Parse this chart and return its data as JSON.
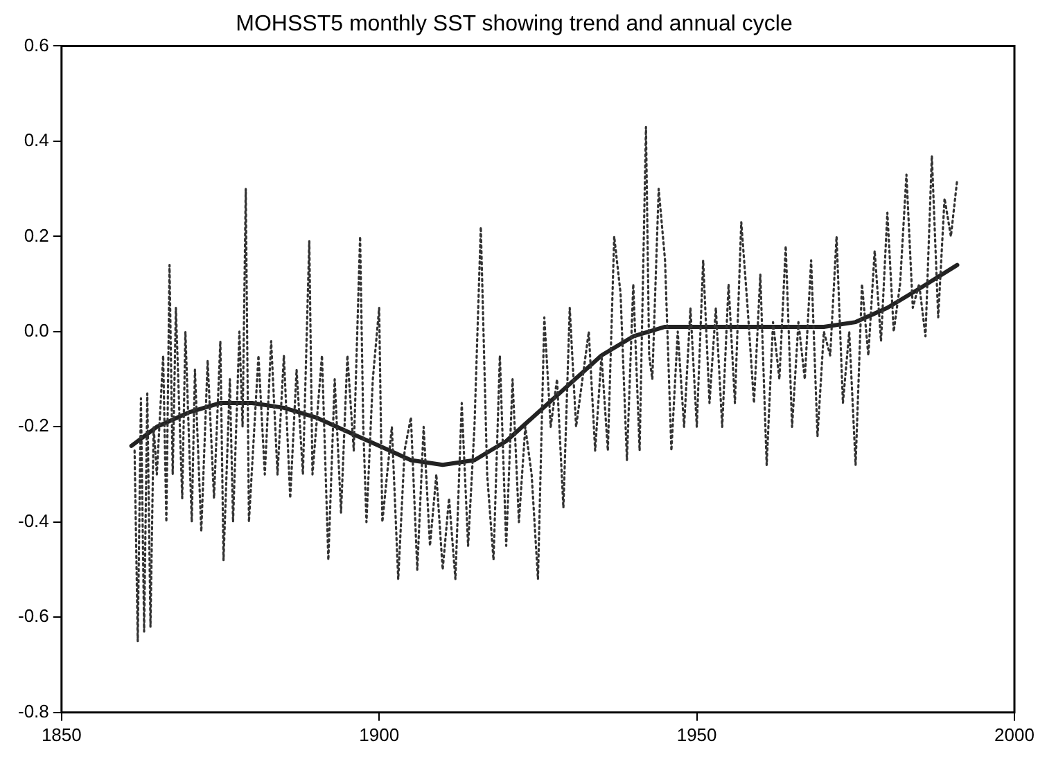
{
  "chart_data": {
    "type": "line",
    "title": "MOHSST5 monthly SST showing trend and annual cycle",
    "xlim": [
      1850,
      2000
    ],
    "xticks": [
      1850,
      1900,
      1950,
      2000
    ],
    "ylim": [
      -0.8,
      0.6
    ],
    "yticks": [
      {
        "value": -0.8,
        "label": "-0.8"
      },
      -0.6,
      -0.4,
      -0.2,
      {
        "value": 0,
        "label": "0.0"
      },
      0.2,
      0.4,
      0.6
    ],
    "grid": false,
    "legend": false,
    "marker": "none",
    "series": [
      {
        "color": "#333333",
        "line_style": "dotted",
        "x": [
          1861.5,
          1862,
          1862.5,
          1863,
          1863.5,
          1864,
          1864.5,
          1865,
          1866,
          1866.5,
          1867,
          1867.5,
          1868,
          1869,
          1869.5,
          1870.5,
          1871,
          1872,
          1873,
          1874,
          1875,
          1875.5,
          1876.5,
          1877,
          1878,
          1878.5,
          1879,
          1879.5,
          1881,
          1882,
          1883,
          1884,
          1885,
          1886,
          1887,
          1888,
          1889,
          1889.5,
          1891,
          1892,
          1893,
          1894,
          1895,
          1896,
          1897,
          1897.5,
          1898,
          1899,
          1900,
          1900.5,
          1902,
          1903,
          1904,
          1905,
          1906,
          1907,
          1908,
          1909,
          1910,
          1911,
          1912,
          1913,
          1914,
          1915,
          1916,
          1917,
          1918,
          1919,
          1920,
          1921,
          1922,
          1923,
          1924,
          1925,
          1926,
          1927,
          1928,
          1929,
          1930,
          1931,
          1932,
          1933,
          1934,
          1935,
          1936,
          1937,
          1938,
          1939,
          1940,
          1941,
          1942,
          1942.5,
          1943,
          1944,
          1945,
          1946,
          1947,
          1948,
          1949,
          1950,
          1951,
          1952,
          1953,
          1954,
          1955,
          1956,
          1957,
          1958,
          1959,
          1960,
          1961,
          1962,
          1963,
          1964,
          1965,
          1966,
          1967,
          1968,
          1969,
          1970,
          1971,
          1972,
          1973,
          1974,
          1975,
          1976,
          1977,
          1978,
          1979,
          1980,
          1981,
          1982,
          1983,
          1984,
          1985,
          1986,
          1987,
          1988,
          1989,
          1990,
          1991
        ],
        "values": [
          -0.25,
          -0.65,
          -0.14,
          -0.63,
          -0.13,
          -0.62,
          -0.2,
          -0.3,
          -0.05,
          -0.4,
          0.14,
          -0.3,
          0.05,
          -0.35,
          0.0,
          -0.4,
          -0.08,
          -0.42,
          -0.06,
          -0.35,
          -0.02,
          -0.48,
          -0.1,
          -0.4,
          0.0,
          -0.2,
          0.3,
          -0.4,
          -0.05,
          -0.3,
          -0.02,
          -0.3,
          -0.05,
          -0.35,
          -0.08,
          -0.3,
          0.19,
          -0.3,
          -0.05,
          -0.48,
          -0.1,
          -0.38,
          -0.05,
          -0.25,
          0.2,
          -0.2,
          -0.4,
          -0.1,
          0.05,
          -0.4,
          -0.2,
          -0.52,
          -0.25,
          -0.18,
          -0.5,
          -0.2,
          -0.45,
          -0.3,
          -0.5,
          -0.35,
          -0.52,
          -0.15,
          -0.45,
          -0.2,
          0.22,
          -0.3,
          -0.48,
          -0.05,
          -0.45,
          -0.1,
          -0.4,
          -0.2,
          -0.3,
          -0.52,
          0.03,
          -0.2,
          -0.1,
          -0.37,
          0.05,
          -0.2,
          -0.1,
          0.0,
          -0.25,
          -0.05,
          -0.25,
          0.2,
          0.08,
          -0.27,
          0.1,
          -0.25,
          0.43,
          -0.05,
          -0.1,
          0.3,
          0.15,
          -0.25,
          0.0,
          -0.2,
          0.05,
          -0.2,
          0.15,
          -0.15,
          0.05,
          -0.2,
          0.1,
          -0.15,
          0.23,
          0.05,
          -0.15,
          0.12,
          -0.28,
          0.02,
          -0.1,
          0.18,
          -0.2,
          0.02,
          -0.1,
          0.15,
          -0.22,
          0.0,
          -0.05,
          0.2,
          -0.15,
          0.0,
          -0.28,
          0.1,
          -0.05,
          0.17,
          -0.02,
          0.25,
          0.0,
          0.1,
          0.33,
          0.05,
          0.1,
          -0.01,
          0.37,
          0.03,
          0.28,
          0.2,
          0.32
        ]
      },
      {
        "color": "#222222",
        "line_style": "solid",
        "x": [
          1861,
          1865,
          1870,
          1875,
          1880,
          1885,
          1890,
          1895,
          1900,
          1905,
          1910,
          1915,
          1920,
          1925,
          1930,
          1935,
          1940,
          1945,
          1950,
          1955,
          1960,
          1965,
          1970,
          1975,
          1980,
          1985,
          1991
        ],
        "values": [
          -0.24,
          -0.2,
          -0.17,
          -0.15,
          -0.15,
          -0.16,
          -0.18,
          -0.21,
          -0.24,
          -0.27,
          -0.28,
          -0.27,
          -0.23,
          -0.17,
          -0.11,
          -0.05,
          -0.01,
          0.01,
          0.01,
          0.01,
          0.01,
          0.01,
          0.01,
          0.02,
          0.05,
          0.09,
          0.14
        ]
      }
    ]
  }
}
